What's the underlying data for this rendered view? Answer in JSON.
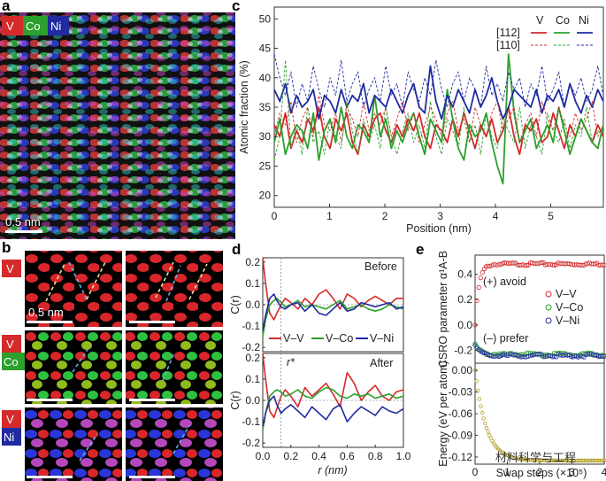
{
  "panel_labels": {
    "a": "a",
    "b": "b",
    "c": "c",
    "d": "d",
    "e": "e"
  },
  "panel_a": {
    "badges": [
      "V",
      "Co",
      "Ni"
    ],
    "scalebar": "0.5 nm"
  },
  "panel_b": {
    "rows": [
      [
        "V"
      ],
      [
        "V",
        "Co"
      ],
      [
        "V",
        "Ni"
      ]
    ],
    "scalebar": "0.5 nm"
  },
  "watermark": "材料科学与工程",
  "colors": {
    "V": "#d42a2a",
    "Co": "#2ca02c",
    "Ni": "#1f2b9e",
    "e_energy": "#b3a02a"
  },
  "chart_data": [
    {
      "id": "c",
      "type": "line",
      "xlabel": "Position (nm)",
      "ylabel": "Atomic fraction (%)",
      "xlim": [
        0,
        5.95
      ],
      "ylim": [
        18,
        52
      ],
      "xticks": [
        "0",
        "1",
        "2",
        "3",
        "4",
        "5"
      ],
      "yticks": [
        "20",
        "25",
        "30",
        "35",
        "40",
        "45",
        "50"
      ],
      "legend": {
        "elements": [
          "V",
          "Co",
          "Ni"
        ],
        "rows": [
          "[112]",
          "[110]"
        ]
      },
      "series": [
        {
          "name": "V [112]",
          "dir": "[112]",
          "el": "V",
          "values": [
            32,
            30,
            34,
            28,
            31,
            29,
            33,
            31,
            35,
            30,
            28,
            33,
            31,
            34,
            29,
            27,
            32,
            30,
            33,
            34,
            31,
            29,
            32,
            30,
            33,
            31,
            34,
            30,
            28,
            32,
            31,
            29,
            33,
            30,
            34,
            31,
            28,
            32,
            30,
            33,
            29,
            31,
            35,
            30,
            27,
            32,
            31,
            33,
            29,
            30,
            34,
            31,
            28,
            32,
            30,
            33,
            31,
            29,
            32,
            30
          ]
        },
        {
          "name": "Co [112]",
          "dir": "[112]",
          "el": "Co",
          "values": [
            29,
            33,
            27,
            30,
            32,
            31,
            28,
            34,
            26,
            31,
            33,
            29,
            35,
            30,
            28,
            32,
            31,
            29,
            37,
            30,
            33,
            28,
            31,
            29,
            32,
            34,
            30,
            27,
            33,
            31,
            29,
            38,
            33,
            28,
            26,
            32,
            30,
            31,
            34,
            29,
            25,
            22,
            44,
            34,
            29,
            31,
            33,
            28,
            30,
            32,
            29,
            35,
            31,
            27,
            30,
            33,
            31,
            29,
            28,
            32
          ]
        },
        {
          "name": "Ni [112]",
          "dir": "[112]",
          "el": "Ni",
          "values": [
            38,
            36,
            39,
            34,
            37,
            35,
            36,
            38,
            33,
            37,
            36,
            34,
            38,
            35,
            37,
            36,
            39,
            34,
            37,
            36,
            35,
            38,
            36,
            34,
            37,
            39,
            35,
            34,
            42,
            36,
            33,
            37,
            35,
            38,
            36,
            34,
            38,
            35,
            37,
            40,
            36,
            33,
            35,
            38,
            37,
            36,
            35,
            38,
            34,
            37,
            36,
            38,
            35,
            39,
            36,
            34,
            37,
            35,
            38,
            36
          ]
        },
        {
          "name": "V [110]",
          "dir": "[110]",
          "el": "V",
          "values": [
            30,
            34,
            32,
            36,
            29,
            33,
            35,
            30,
            37,
            32,
            31,
            34,
            29,
            35,
            33,
            30,
            36,
            31,
            34,
            32,
            35,
            30,
            33,
            36,
            31,
            34,
            29,
            32,
            35,
            33,
            30,
            34,
            36,
            31,
            33,
            29,
            35,
            32,
            30,
            34,
            36,
            31,
            33,
            35,
            29,
            32,
            34,
            30,
            36,
            33,
            31,
            35,
            32,
            30,
            34,
            31,
            33,
            36,
            30,
            32
          ]
        },
        {
          "name": "Co [110]",
          "dir": "[110]",
          "el": "Co",
          "values": [
            26,
            30,
            43,
            28,
            32,
            27,
            35,
            29,
            31,
            27,
            33,
            30,
            28,
            36,
            31,
            27,
            33,
            29,
            32,
            28,
            35,
            30,
            27,
            31,
            34,
            29,
            32,
            28,
            36,
            30,
            27,
            33,
            31,
            28,
            35,
            29,
            32,
            27,
            34,
            30,
            28,
            33,
            31,
            29,
            35,
            28,
            32,
            30,
            27,
            34,
            31,
            29,
            33,
            28,
            32,
            30,
            35,
            29,
            31,
            30
          ]
        },
        {
          "name": "Ni [110]",
          "dir": "[110]",
          "el": "Ni",
          "values": [
            44,
            40,
            37,
            41,
            35,
            39,
            36,
            42,
            38,
            35,
            40,
            37,
            43,
            36,
            39,
            41,
            35,
            38,
            40,
            36,
            42,
            37,
            39,
            35,
            41,
            38,
            36,
            40,
            37,
            43,
            38,
            35,
            39,
            41,
            36,
            40,
            38,
            35,
            42,
            37,
            39,
            36,
            41,
            38,
            40,
            35,
            39,
            37,
            42,
            36,
            38,
            41,
            35,
            39,
            37,
            40,
            36,
            38,
            42,
            37
          ]
        }
      ]
    },
    {
      "id": "d",
      "type": "line",
      "xlabel": "r (nm)",
      "ylabel": "C(r)",
      "xlim": [
        0,
        1.0
      ],
      "ylim": [
        -0.22,
        0.22
      ],
      "xticks": [
        "0.0",
        "0.2",
        "0.4",
        "0.6",
        "0.8",
        "1.0"
      ],
      "yticks": [
        "-0.2",
        "-0.1",
        "0.0",
        "0.1",
        "0.2"
      ],
      "rstar_label": "r*",
      "rstar": 0.13,
      "legend": [
        "V–V",
        "V–Co",
        "V–Ni"
      ],
      "panels": [
        {
          "title": "Before",
          "series": [
            {
              "name": "V–V",
              "x": [
                0,
                0.02,
                0.05,
                0.08,
                0.1,
                0.13,
                0.16,
                0.2,
                0.25,
                0.3,
                0.35,
                0.4,
                0.45,
                0.5,
                0.55,
                0.6,
                0.65,
                0.7,
                0.75,
                0.8,
                0.85,
                0.9,
                0.95,
                1.0
              ],
              "values": [
                0.22,
                0.1,
                -0.04,
                -0.07,
                -0.04,
                0.0,
                0.03,
                0.01,
                -0.02,
                0.03,
                0.0,
                0.05,
                0.07,
                0.03,
                -0.02,
                0.05,
                0.03,
                -0.01,
                0.02,
                0.04,
                0.02,
                0.0,
                0.03,
                0.03
              ]
            },
            {
              "name": "V–Co",
              "x": [
                0,
                0.02,
                0.05,
                0.08,
                0.1,
                0.13,
                0.16,
                0.2,
                0.25,
                0.3,
                0.35,
                0.4,
                0.45,
                0.5,
                0.55,
                0.6,
                0.65,
                0.7,
                0.75,
                0.8,
                0.85,
                0.9,
                0.95,
                1.0
              ],
              "values": [
                -0.15,
                -0.07,
                0.0,
                0.02,
                0.03,
                0.01,
                -0.01,
                0.0,
                0.02,
                -0.01,
                0.0,
                -0.01,
                -0.02,
                0.0,
                0.02,
                -0.02,
                -0.01,
                0.0,
                -0.02,
                -0.03,
                -0.02,
                0.0,
                -0.01,
                -0.02
              ]
            },
            {
              "name": "V–Ni",
              "x": [
                0,
                0.02,
                0.05,
                0.08,
                0.1,
                0.13,
                0.16,
                0.2,
                0.25,
                0.3,
                0.35,
                0.4,
                0.45,
                0.5,
                0.55,
                0.6,
                0.65,
                0.7,
                0.75,
                0.8,
                0.85,
                0.9,
                0.95,
                1.0
              ],
              "values": [
                -0.12,
                -0.05,
                0.03,
                0.05,
                0.02,
                -0.01,
                -0.02,
                0.0,
                0.01,
                -0.03,
                0.0,
                -0.04,
                -0.05,
                -0.02,
                0.01,
                -0.03,
                -0.02,
                0.01,
                0.0,
                -0.01,
                0.0,
                0.01,
                -0.02,
                -0.01
              ]
            }
          ]
        },
        {
          "title": "After",
          "series": [
            {
              "name": "V–V",
              "x": [
                0,
                0.02,
                0.05,
                0.08,
                0.1,
                0.13,
                0.16,
                0.2,
                0.25,
                0.3,
                0.35,
                0.4,
                0.45,
                0.5,
                0.55,
                0.6,
                0.65,
                0.7,
                0.75,
                0.8,
                0.85,
                0.9,
                0.95,
                1.0
              ],
              "values": [
                0.22,
                0.1,
                -0.05,
                -0.08,
                -0.04,
                0.02,
                0.05,
                0.02,
                -0.03,
                0.06,
                0.02,
                0.05,
                0.08,
                0.03,
                -0.03,
                0.13,
                0.08,
                0.0,
                0.04,
                0.07,
                0.02,
                0.0,
                0.04,
                0.05
              ]
            },
            {
              "name": "V–Co",
              "x": [
                0,
                0.02,
                0.05,
                0.08,
                0.1,
                0.13,
                0.16,
                0.2,
                0.25,
                0.3,
                0.35,
                0.4,
                0.45,
                0.5,
                0.55,
                0.6,
                0.65,
                0.7,
                0.75,
                0.8,
                0.85,
                0.9,
                0.95,
                1.0
              ],
              "values": [
                -0.14,
                -0.06,
                0.02,
                0.04,
                0.05,
                0.04,
                0.02,
                0.03,
                0.05,
                0.02,
                0.01,
                0.04,
                0.06,
                0.05,
                0.02,
                0.01,
                0.03,
                0.02,
                0.03,
                0.01,
                0.02,
                0.03,
                0.01,
                0.02
              ]
            },
            {
              "name": "V–Ni",
              "x": [
                0,
                0.02,
                0.05,
                0.08,
                0.1,
                0.13,
                0.16,
                0.2,
                0.25,
                0.3,
                0.35,
                0.4,
                0.45,
                0.5,
                0.55,
                0.6,
                0.65,
                0.7,
                0.75,
                0.8,
                0.85,
                0.9,
                0.95,
                1.0
              ],
              "values": [
                -0.12,
                -0.06,
                0.0,
                0.02,
                -0.02,
                -0.06,
                -0.04,
                -0.02,
                -0.05,
                -0.08,
                -0.03,
                -0.06,
                -0.09,
                -0.04,
                -0.02,
                -0.1,
                -0.06,
                -0.03,
                -0.05,
                -0.07,
                -0.03,
                -0.05,
                -0.06,
                -0.04
              ]
            }
          ]
        }
      ]
    },
    {
      "id": "e",
      "type": "scatter",
      "xlabel": "Swap steps (×10⁵)",
      "xlim": [
        0,
        4
      ],
      "xticks": [
        "0",
        "1",
        "2",
        "3",
        "4"
      ],
      "top": {
        "ylabel": "CSRO parameter α¹A-B",
        "ylim": [
          -0.3,
          0.55
        ],
        "yticks": [
          "0.4",
          "0.2",
          "0.0",
          "-0.2"
        ],
        "annotations": [
          "(+) avoid",
          "(–) prefer"
        ],
        "legend": [
          "V–V",
          "V–Co",
          "V–Ni"
        ],
        "series": [
          {
            "name": "V–V",
            "start": 0.0,
            "end": 0.48,
            "tau": 0.12
          },
          {
            "name": "V–Co",
            "start": -0.15,
            "end": -0.23,
            "tau": 0.15
          },
          {
            "name": "V–Ni",
            "start": -0.16,
            "end": -0.24,
            "tau": 0.15
          }
        ]
      },
      "bottom": {
        "ylabel": "Energy (eV per atom)",
        "ylim": [
          -0.13,
          0.01
        ],
        "yticks": [
          "0.00",
          "-0.03",
          "-0.06",
          "-0.09",
          "-0.12"
        ],
        "series": [
          {
            "name": "Energy",
            "start": 0.0,
            "end": -0.125,
            "tau": 0.35
          }
        ]
      }
    }
  ]
}
